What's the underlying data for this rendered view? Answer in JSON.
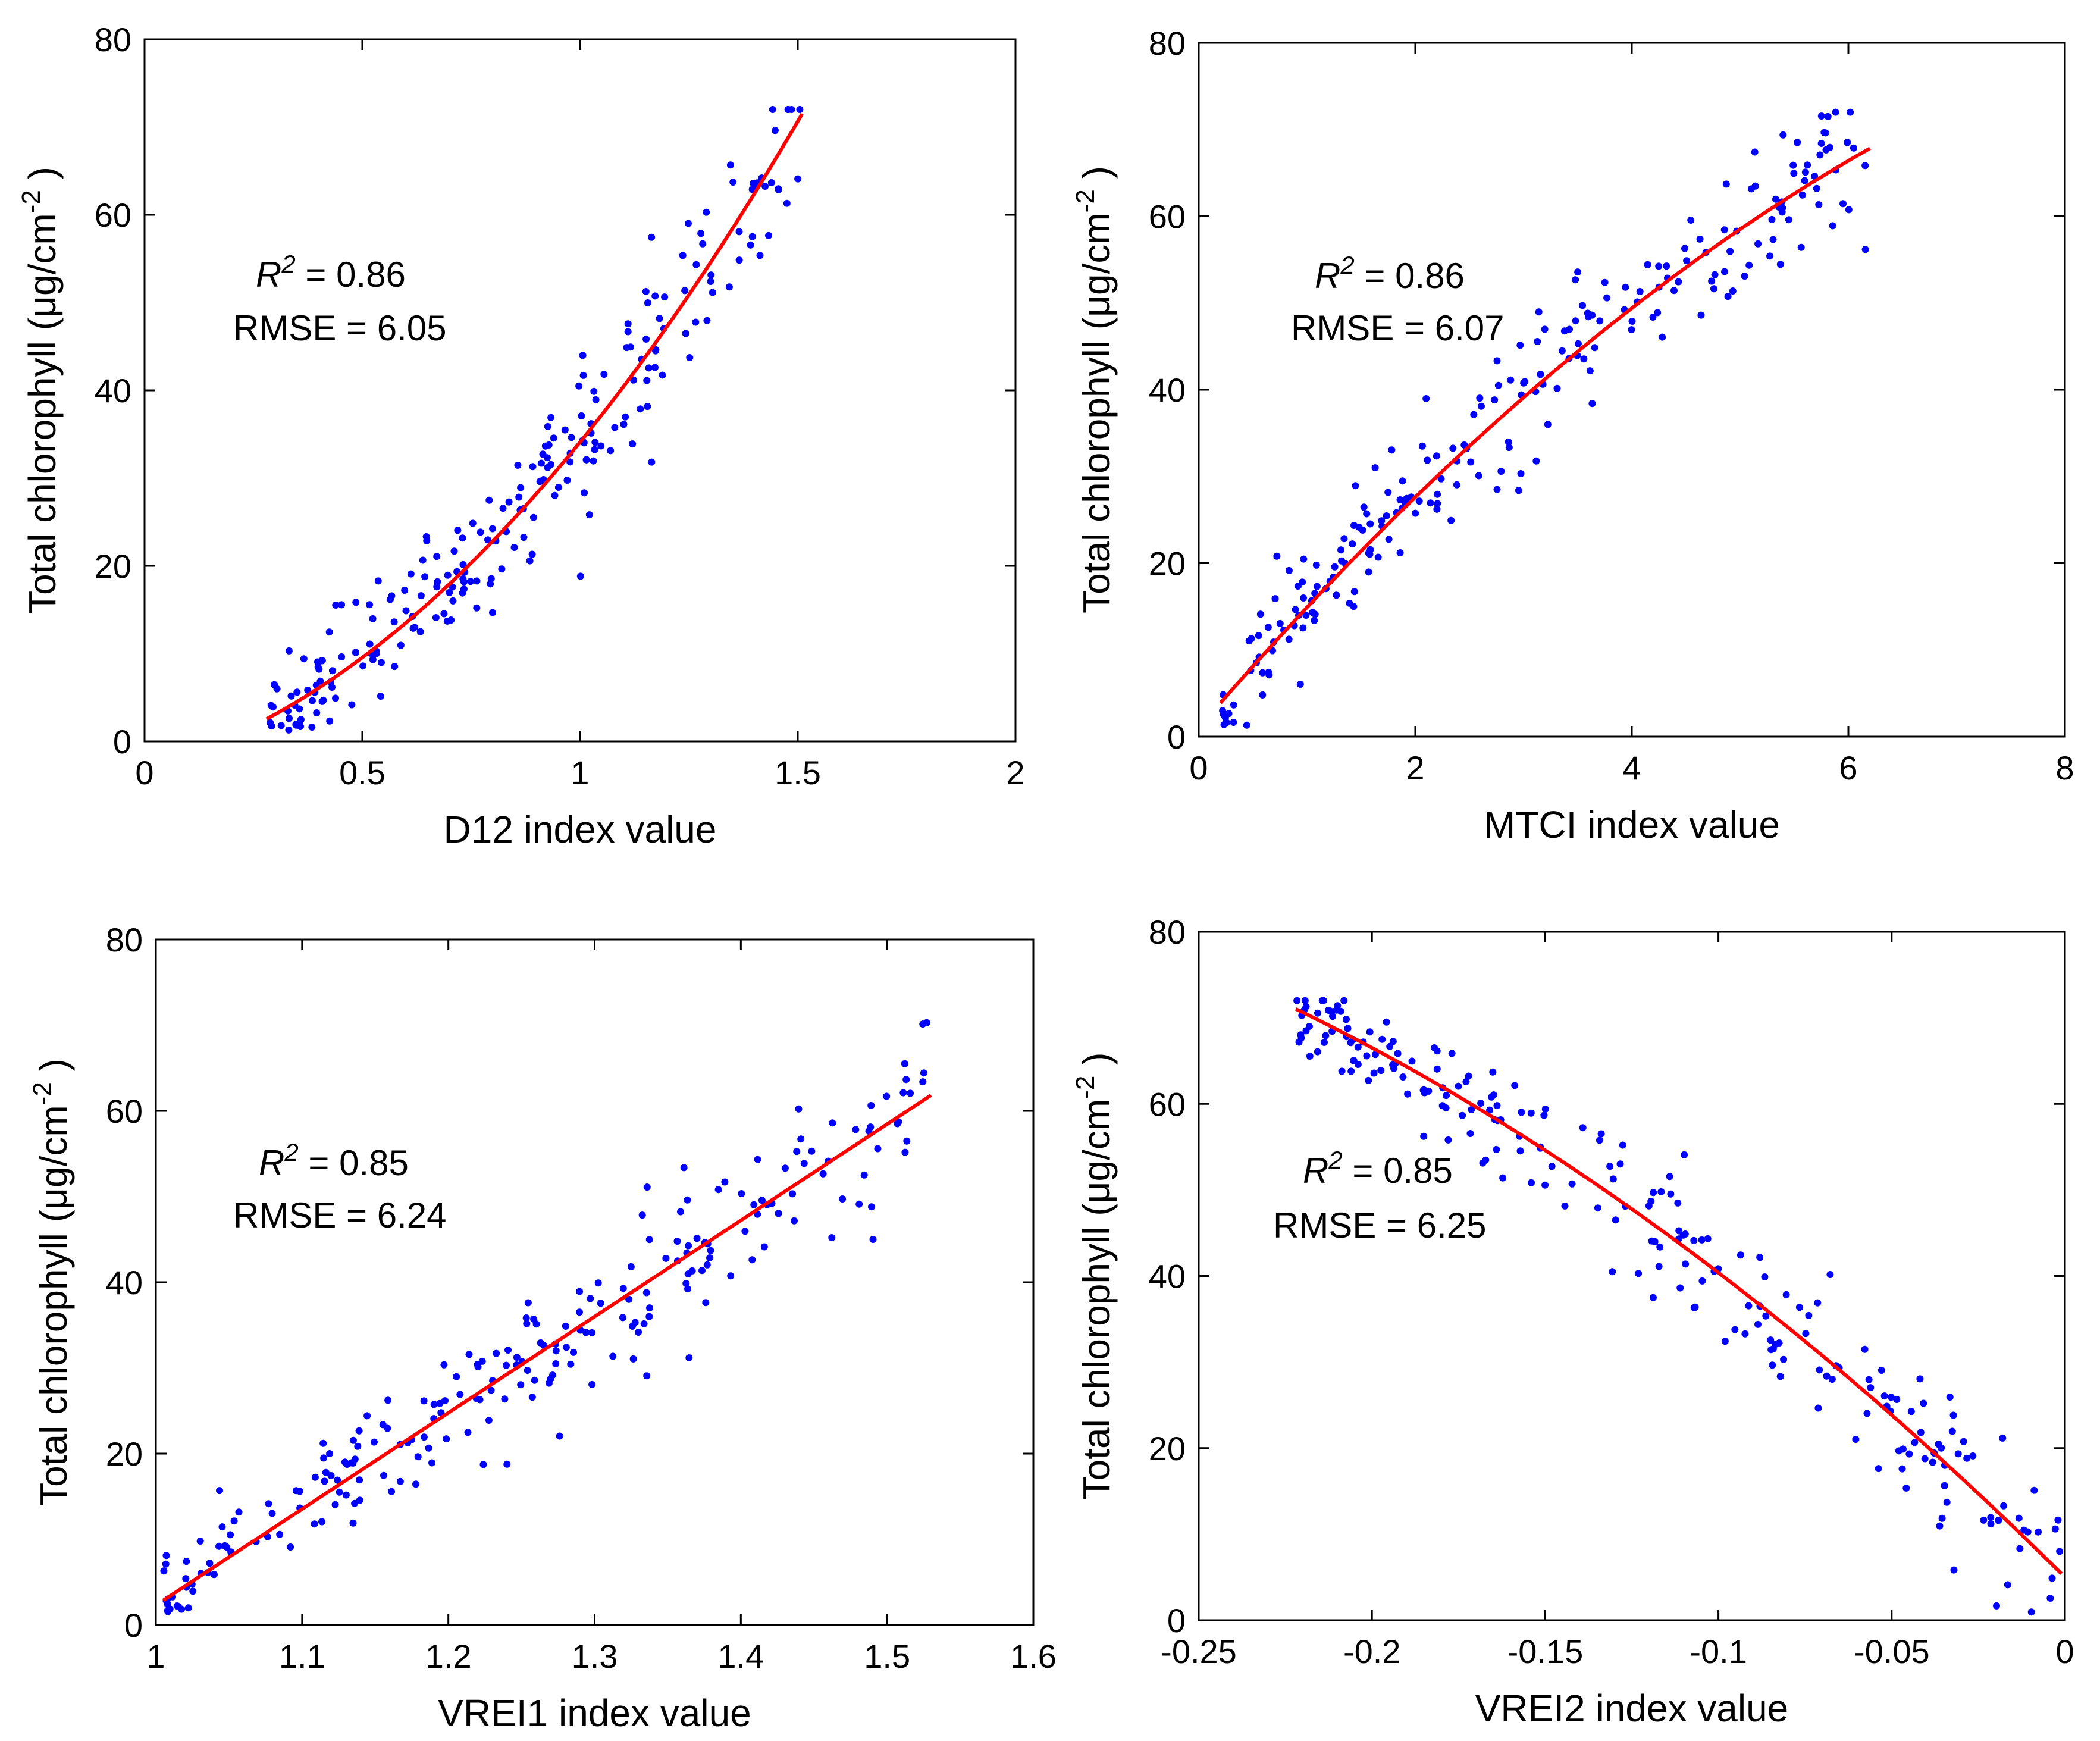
{
  "chart_data": [
    {
      "type": "scatter",
      "title": "",
      "xlabel": "D12 index value",
      "ylabel": "Total chlorophyll (μg/cm",
      "ylabel_sup": "-2",
      "ylabel_close": ")",
      "xlim": [
        0,
        2
      ],
      "ylim": [
        0,
        80
      ],
      "xticks": [
        0,
        0.5,
        1,
        1.5,
        2
      ],
      "xtick_labels": [
        "0",
        "0.5",
        "1",
        "1.5",
        "2"
      ],
      "yticks": [
        0,
        20,
        40,
        60,
        80
      ],
      "ytick_labels": [
        "0",
        "20",
        "40",
        "60",
        "80"
      ],
      "annotation": {
        "r2_symbol": "R",
        "r2_sup": "2",
        "r2_text": " = 0.86",
        "rmse_text": "RMSE = 6.05"
      },
      "series": [
        {
          "name": "observations",
          "color": "#0000ff",
          "fit": {
            "type": "poly",
            "coef": [
              -3.0,
              13.1,
              24.0
            ],
            "x_range": [
              0.28,
              1.51
            ]
          },
          "noise_sd": 5.0,
          "n": 230,
          "seed": 11
        },
        {
          "name": "fit",
          "color": "#ff0000"
        }
      ]
    },
    {
      "type": "scatter",
      "title": "",
      "xlabel": "MTCI index value",
      "ylabel": "Total chlorophyll (μg/cm",
      "ylabel_sup": "-2",
      "ylabel_close": ")",
      "xlim": [
        0,
        8
      ],
      "ylim": [
        0,
        80
      ],
      "xticks": [
        0,
        2,
        4,
        6,
        8
      ],
      "xtick_labels": [
        "0",
        "2",
        "4",
        "6",
        "8"
      ],
      "yticks": [
        0,
        20,
        40,
        60,
        80
      ],
      "ytick_labels": [
        "0",
        "20",
        "40",
        "60",
        "80"
      ],
      "annotation": {
        "r2_symbol": "R",
        "r2_sup": "2",
        "r2_text": " = 0.86",
        "rmse_text": "RMSE = 6.07"
      },
      "series": [
        {
          "name": "observations",
          "color": "#0000ff",
          "fit": {
            "type": "poly",
            "coef": [
              1.0,
              14.5,
              -0.6
            ],
            "x_range": [
              0.2,
              6.2
            ]
          },
          "noise_sd": 5.0,
          "n": 230,
          "seed": 23
        },
        {
          "name": "fit",
          "color": "#ff0000"
        }
      ]
    },
    {
      "type": "scatter",
      "title": "",
      "xlabel": "VREI1 index value",
      "ylabel": "Total chlorophyll (μg/cm",
      "ylabel_sup": "-2",
      "ylabel_close": ")",
      "xlim": [
        1,
        1.6
      ],
      "ylim": [
        0,
        80
      ],
      "xticks": [
        1,
        1.1,
        1.2,
        1.3,
        1.4,
        1.5,
        1.6
      ],
      "xtick_labels": [
        "1",
        "1.1",
        "1.2",
        "1.3",
        "1.4",
        "1.5",
        "1.6"
      ],
      "yticks": [
        0,
        20,
        40,
        60,
        80
      ],
      "ytick_labels": [
        "0",
        "20",
        "40",
        "60",
        "80"
      ],
      "annotation": {
        "r2_symbol": "R",
        "r2_sup": "2",
        "r2_text": " = 0.85",
        "rmse_text": "RMSE = 6.24"
      },
      "series": [
        {
          "name": "observations",
          "color": "#0000ff",
          "fit": {
            "type": "poly",
            "coef": [
              -110.0,
              112.3,
              0
            ],
            "x_range": [
              1.005,
              1.53
            ]
          },
          "noise_sd": 5.2,
          "n": 230,
          "seed": 37
        },
        {
          "name": "fit",
          "color": "#ff0000"
        }
      ]
    },
    {
      "type": "scatter",
      "title": "",
      "xlabel": "VREI2 index value",
      "ylabel": "Total chlorophyll (μg/cm",
      "ylabel_sup": "-2",
      "ylabel_close": ")",
      "xlim": [
        -0.25,
        0
      ],
      "ylim": [
        0,
        80
      ],
      "xticks": [
        -0.25,
        -0.2,
        -0.15,
        -0.1,
        -0.05,
        0
      ],
      "xtick_labels": [
        "-0.25",
        "-0.2",
        "-0.15",
        "-0.1",
        "-0.05",
        "0"
      ],
      "yticks": [
        0,
        20,
        40,
        60,
        80
      ],
      "ytick_labels": [
        "0",
        "20",
        "40",
        "60",
        "80"
      ],
      "annotation": {
        "r2_symbol": "R",
        "r2_sup": "2",
        "r2_text": " = 0.85",
        "rmse_text": "RMSE = 6.25"
      },
      "series": [
        {
          "name": "observations",
          "color": "#0000ff",
          "fit": {
            "type": "poly",
            "coef": [
              5.0,
              -400.0,
              -462.0
            ],
            "x_range": [
              -0.222,
              -0.001
            ]
          },
          "noise_sd": 5.2,
          "n": 230,
          "seed": 53
        },
        {
          "name": "fit",
          "color": "#ff0000"
        }
      ]
    }
  ]
}
